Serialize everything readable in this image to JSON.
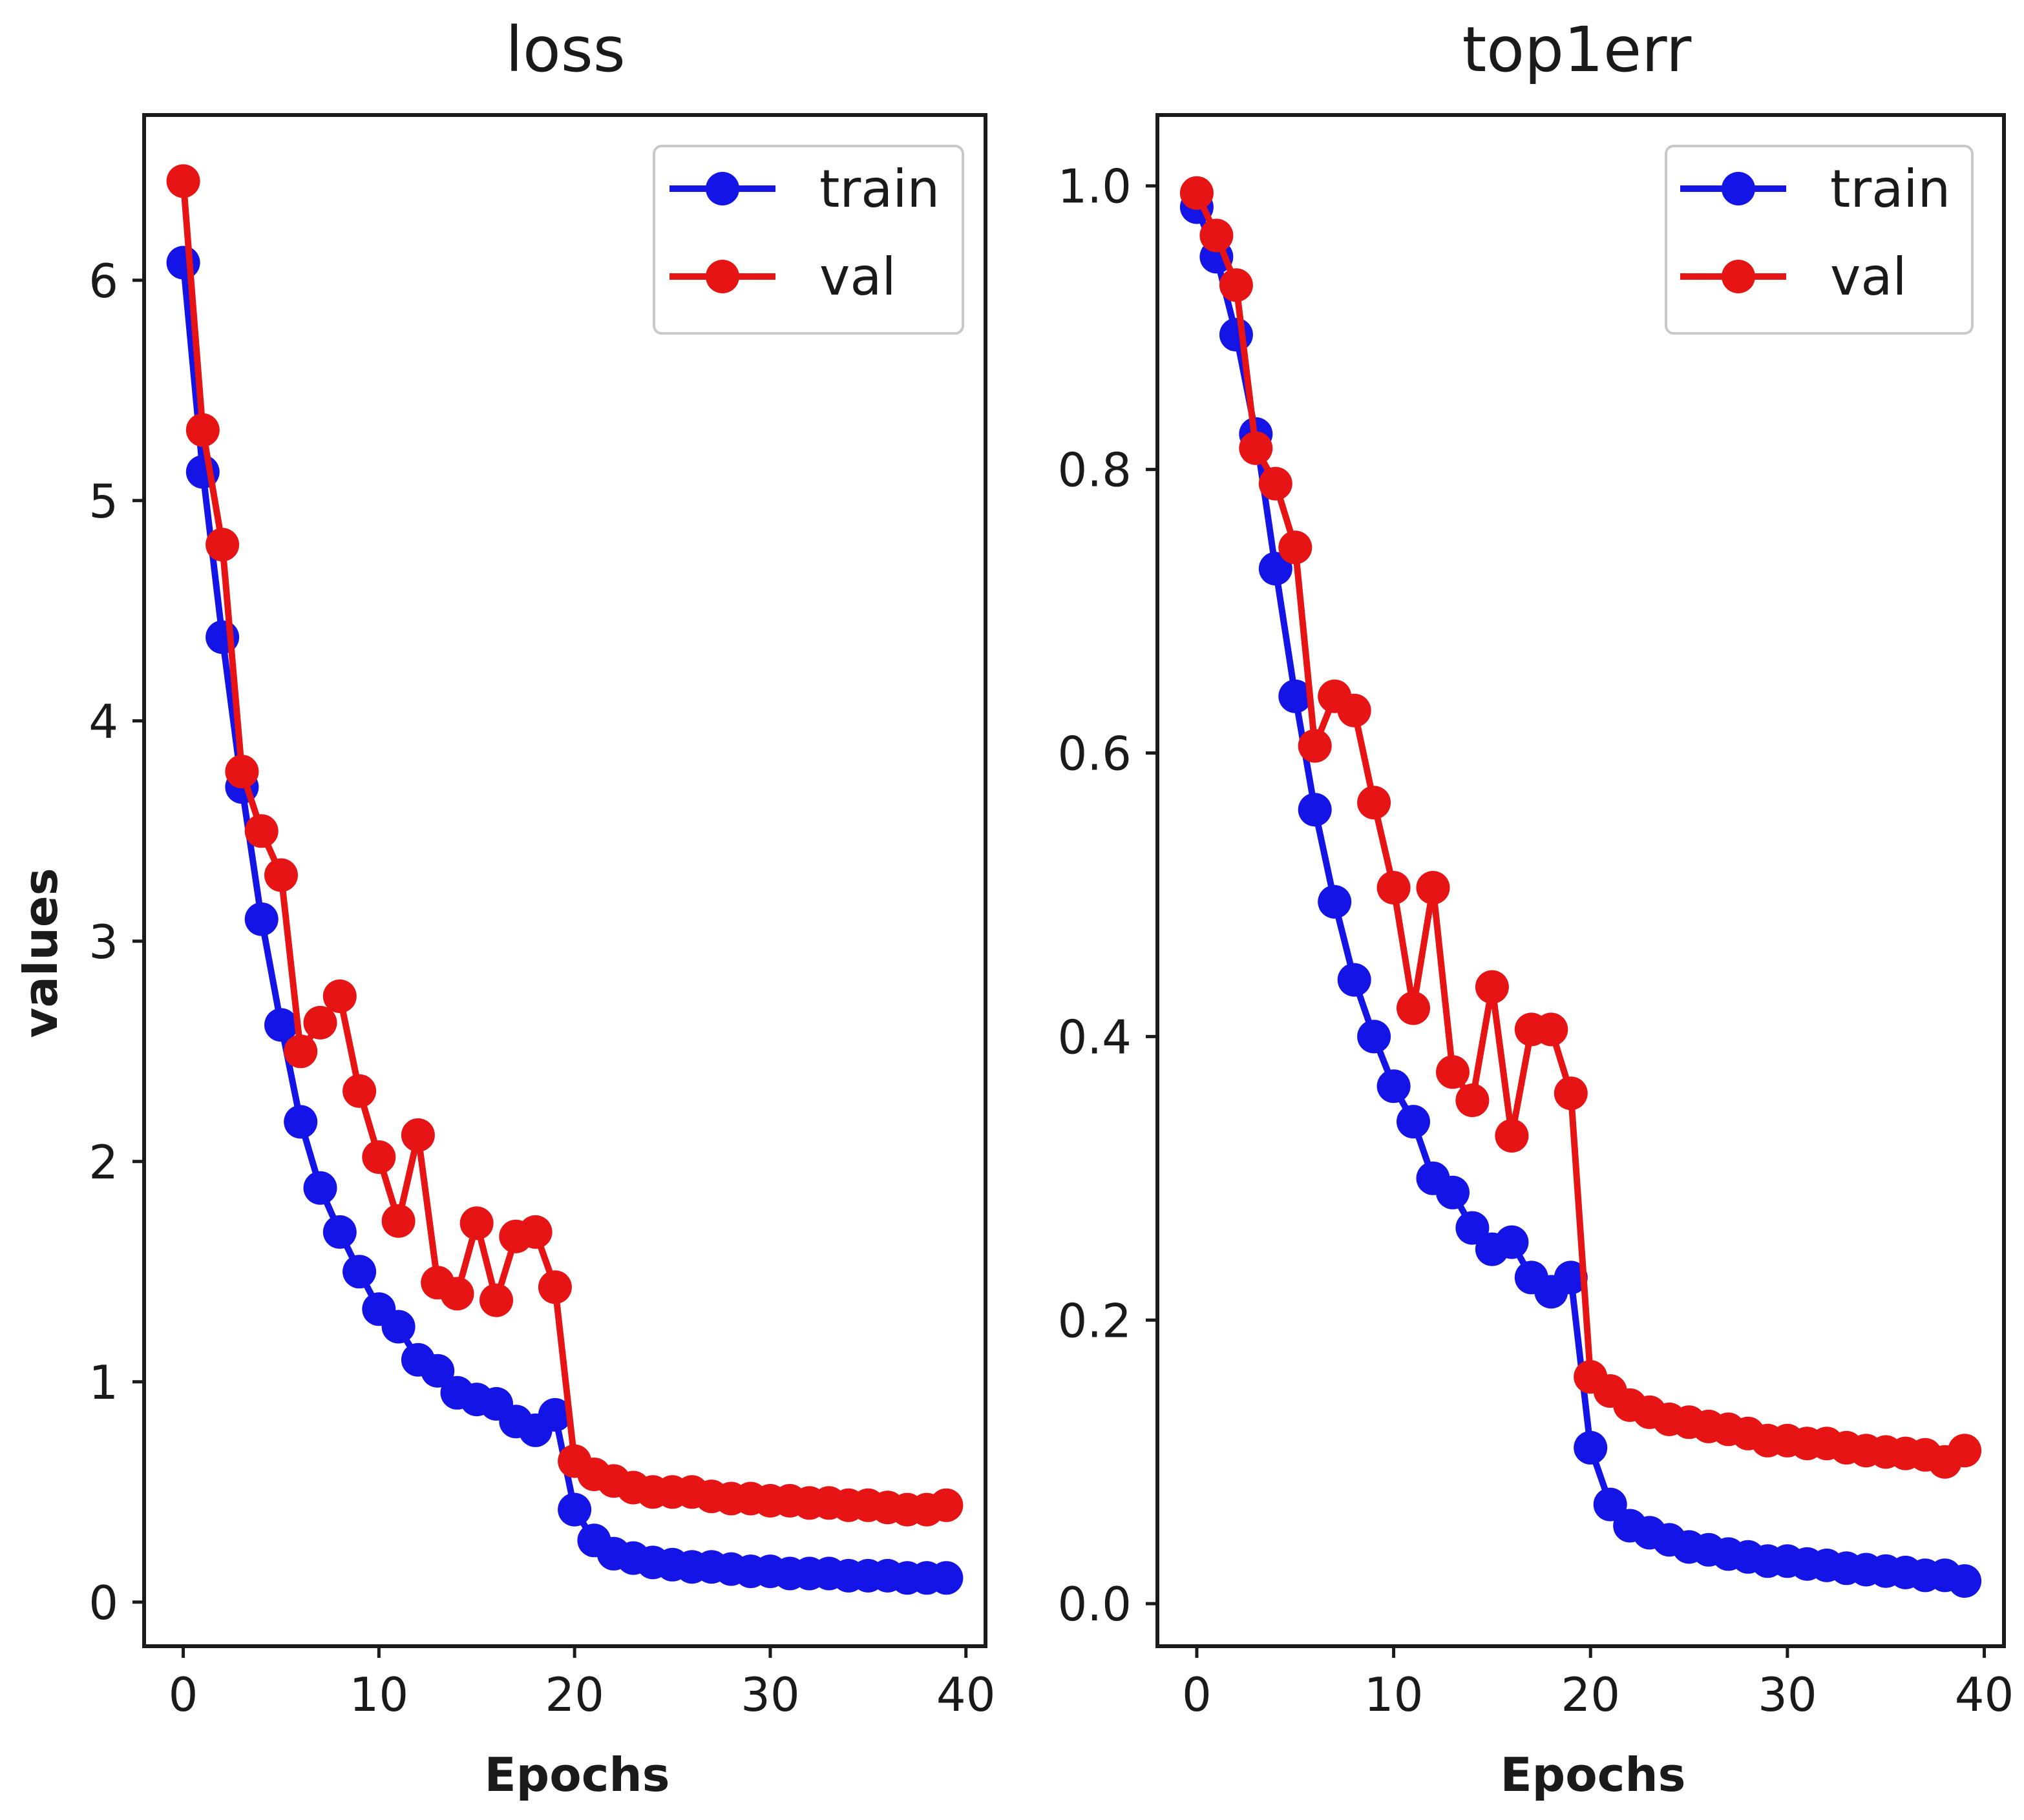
{
  "chart_data": [
    {
      "type": "line",
      "title": "loss",
      "xlabel": "Epochs",
      "ylabel": "values",
      "xlim": [
        -2,
        41
      ],
      "ylim": [
        -0.2,
        6.75
      ],
      "xticks": [
        0,
        10,
        20,
        30,
        40
      ],
      "yticks": [
        0,
        1,
        2,
        3,
        4,
        5,
        6
      ],
      "xtick_labels": [
        "0",
        "10",
        "20",
        "30",
        "40"
      ],
      "ytick_labels": [
        "0",
        "1",
        "2",
        "3",
        "4",
        "5",
        "6"
      ],
      "grid": false,
      "legend_position": "upper right",
      "series": [
        {
          "name": "train",
          "color": "#1414e6",
          "x": [
            0,
            1,
            2,
            3,
            4,
            5,
            6,
            7,
            8,
            9,
            10,
            11,
            12,
            13,
            14,
            15,
            16,
            17,
            18,
            19,
            20,
            21,
            22,
            23,
            24,
            25,
            26,
            27,
            28,
            29,
            30,
            31,
            32,
            33,
            34,
            35,
            36,
            37,
            38,
            39
          ],
          "values": [
            6.08,
            5.13,
            4.38,
            3.7,
            3.1,
            2.62,
            2.18,
            1.88,
            1.68,
            1.5,
            1.33,
            1.25,
            1.1,
            1.05,
            0.95,
            0.92,
            0.9,
            0.82,
            0.78,
            0.85,
            0.42,
            0.28,
            0.22,
            0.2,
            0.18,
            0.17,
            0.16,
            0.16,
            0.15,
            0.14,
            0.14,
            0.13,
            0.13,
            0.13,
            0.12,
            0.12,
            0.12,
            0.11,
            0.11,
            0.11
          ]
        },
        {
          "name": "val",
          "color": "#e61414",
          "x": [
            0,
            1,
            2,
            3,
            4,
            5,
            6,
            7,
            8,
            9,
            10,
            11,
            12,
            13,
            14,
            15,
            16,
            17,
            18,
            19,
            20,
            21,
            22,
            23,
            24,
            25,
            26,
            27,
            28,
            29,
            30,
            31,
            32,
            33,
            34,
            35,
            36,
            37,
            38,
            39
          ],
          "values": [
            6.45,
            5.32,
            4.8,
            3.77,
            3.5,
            3.3,
            2.5,
            2.63,
            2.75,
            2.32,
            2.02,
            1.73,
            2.12,
            1.45,
            1.4,
            1.72,
            1.37,
            1.66,
            1.68,
            1.43,
            0.64,
            0.58,
            0.55,
            0.52,
            0.5,
            0.5,
            0.5,
            0.48,
            0.47,
            0.47,
            0.46,
            0.46,
            0.45,
            0.45,
            0.44,
            0.44,
            0.43,
            0.42,
            0.42,
            0.44
          ]
        }
      ]
    },
    {
      "type": "line",
      "title": "top1err",
      "xlabel": "Epochs",
      "ylabel": "",
      "xlim": [
        -2,
        41
      ],
      "ylim": [
        -0.03,
        1.05
      ],
      "xticks": [
        0,
        10,
        20,
        30,
        40
      ],
      "yticks": [
        0.0,
        0.2,
        0.4,
        0.6,
        0.8,
        1.0
      ],
      "xtick_labels": [
        "0",
        "10",
        "20",
        "30",
        "40"
      ],
      "ytick_labels": [
        "0.0",
        "0.2",
        "0.4",
        "0.6",
        "0.8",
        "1.0"
      ],
      "grid": false,
      "legend_position": "upper right",
      "series": [
        {
          "name": "train",
          "color": "#1414e6",
          "x": [
            0,
            1,
            2,
            3,
            4,
            5,
            6,
            7,
            8,
            9,
            10,
            11,
            12,
            13,
            14,
            15,
            16,
            17,
            18,
            19,
            20,
            21,
            22,
            23,
            24,
            25,
            26,
            27,
            28,
            29,
            30,
            31,
            32,
            33,
            34,
            35,
            36,
            37,
            38,
            39
          ],
          "values": [
            0.985,
            0.95,
            0.895,
            0.825,
            0.73,
            0.64,
            0.56,
            0.495,
            0.44,
            0.4,
            0.365,
            0.34,
            0.3,
            0.29,
            0.265,
            0.25,
            0.255,
            0.23,
            0.22,
            0.23,
            0.11,
            0.07,
            0.055,
            0.05,
            0.045,
            0.04,
            0.038,
            0.035,
            0.033,
            0.03,
            0.03,
            0.028,
            0.027,
            0.025,
            0.024,
            0.023,
            0.022,
            0.02,
            0.02,
            0.016
          ]
        },
        {
          "name": "val",
          "color": "#e61414",
          "x": [
            0,
            1,
            2,
            3,
            4,
            5,
            6,
            7,
            8,
            9,
            10,
            11,
            12,
            13,
            14,
            15,
            16,
            17,
            18,
            19,
            20,
            21,
            22,
            23,
            24,
            25,
            26,
            27,
            28,
            29,
            30,
            31,
            32,
            33,
            34,
            35,
            36,
            37,
            38,
            39
          ],
          "values": [
            0.995,
            0.965,
            0.93,
            0.815,
            0.79,
            0.745,
            0.605,
            0.64,
            0.63,
            0.565,
            0.505,
            0.42,
            0.505,
            0.375,
            0.355,
            0.435,
            0.33,
            0.405,
            0.405,
            0.36,
            0.16,
            0.15,
            0.14,
            0.135,
            0.13,
            0.128,
            0.125,
            0.123,
            0.12,
            0.115,
            0.115,
            0.113,
            0.113,
            0.11,
            0.108,
            0.107,
            0.106,
            0.105,
            0.1,
            0.108
          ]
        }
      ]
    }
  ]
}
